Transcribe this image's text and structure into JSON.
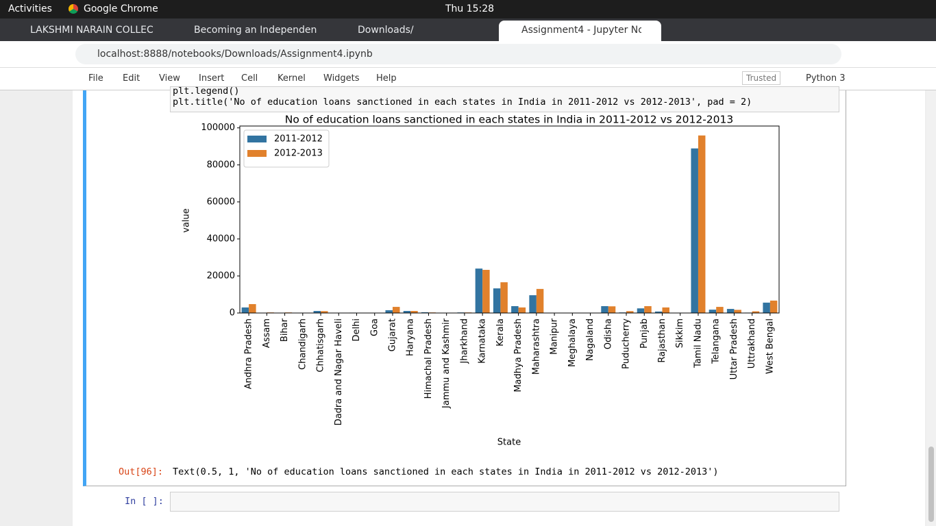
{
  "topbar": {
    "activities": "Activities",
    "app": "Google Chrome",
    "clock": "Thu 15:28"
  },
  "tabs": [
    "LAKSHMI NARAIN COLLEC",
    "Becoming an Independen",
    "Downloads/",
    "Assignment4 - Jupyter No"
  ],
  "url": "localhost:8888/notebooks/Downloads/Assignment4.ipynb",
  "menu": [
    "File",
    "Edit",
    "View",
    "Insert",
    "Cell",
    "Kernel",
    "Widgets",
    "Help"
  ],
  "trusted": "Trusted",
  "kernel": "Python 3",
  "code": [
    "plt.legend()",
    "plt.title('No of education loans sanctioned in each states in India in 2011-2012 vs 2012-2013', pad = 2)"
  ],
  "out_prompt": "Out[96]:",
  "out_text": "Text(0.5, 1, 'No of education loans sanctioned in each states in India in 2011-2012 vs 2012-2013')",
  "in_prompt": "In [ ]:",
  "chart_data": {
    "type": "bar",
    "title": "No of education loans sanctioned in each states in India in 2011-2012 vs 2012-2013",
    "x_label": "State",
    "y_label": "value",
    "categories": [
      "Andhra Pradesh",
      "Assam",
      "Bihar",
      "Chandigarh",
      "Chhatisgarh",
      "Dadra and Nagar Haveli",
      "Delhi",
      "Goa",
      "Gujarat",
      "Haryana",
      "Himachal Pradesh",
      "Jammu and Kashmir",
      "Jharkhand",
      "Karnataka",
      "Kerala",
      "Madhya Pradesh",
      "Maharashtra",
      "Manipur",
      "Meghalaya",
      "Nagaland",
      "Odisha",
      "Puducherry",
      "Punjab",
      "Rajasthan",
      "Sikkim",
      "Tamil Nadu",
      "Telangana",
      "Uttar Pradesh",
      "Uttrakhand",
      "West Bengal"
    ],
    "series": [
      {
        "name": "2011-2012",
        "color": "#3274a1",
        "values": [
          3000,
          0,
          100,
          50,
          1100,
          0,
          200,
          50,
          1500,
          1100,
          400,
          100,
          300,
          24000,
          13300,
          3700,
          9600,
          0,
          0,
          0,
          3700,
          300,
          2500,
          800,
          0,
          88900,
          1800,
          2200,
          200,
          5600
        ]
      },
      {
        "name": "2012-2013",
        "color": "#e1812c",
        "values": [
          4800,
          300,
          300,
          50,
          1000,
          0,
          100,
          50,
          3300,
          1100,
          300,
          100,
          300,
          23300,
          16600,
          3000,
          13000,
          0,
          0,
          0,
          3600,
          1000,
          3700,
          3000,
          0,
          95900,
          3300,
          1700,
          900,
          6700
        ]
      }
    ],
    "ylim": [
      0,
      101000
    ],
    "yticks": [
      0,
      20000,
      40000,
      60000,
      80000,
      100000
    ],
    "legend": "upper left"
  }
}
